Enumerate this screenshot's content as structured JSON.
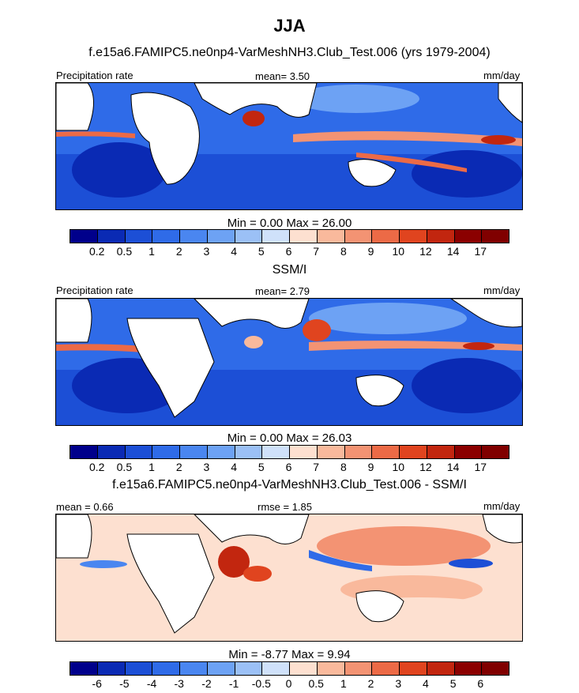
{
  "chart_data": {
    "type": "heatmap",
    "title": "JJA",
    "panels": [
      {
        "heading": "f.e15a6.FAMIPC5.ne0np4-VarMeshNH3.Club_Test.006 (yrs 1979-2004)",
        "left_label": "Precipitation rate",
        "center_label": "mean=   3.50",
        "right_label": "mm/day",
        "minmax": "Min =   0.00 Max =  26.00",
        "levels": [
          "0.2",
          "0.5",
          "1",
          "2",
          "3",
          "4",
          "5",
          "6",
          "7",
          "8",
          "9",
          "10",
          "12",
          "14",
          "17"
        ],
        "colors": [
          "#00008b",
          "#0a2ab4",
          "#1c4fd6",
          "#2f6be8",
          "#4a86f0",
          "#6da2f4",
          "#9bc0f6",
          "#cfe1fa",
          "#fde0d0",
          "#f9b99c",
          "#f39373",
          "#ec6a46",
          "#e0441f",
          "#c2260f",
          "#8b0000",
          "#800000"
        ]
      },
      {
        "heading": "SSM/I",
        "left_label": "Precipitation rate",
        "center_label": "mean=   2.79",
        "right_label": "mm/day",
        "minmax": "Min =   0.00 Max =  26.03",
        "levels": [
          "0.2",
          "0.5",
          "1",
          "2",
          "3",
          "4",
          "5",
          "6",
          "7",
          "8",
          "9",
          "10",
          "12",
          "14",
          "17"
        ],
        "colors": [
          "#00008b",
          "#0a2ab4",
          "#1c4fd6",
          "#2f6be8",
          "#4a86f0",
          "#6da2f4",
          "#9bc0f6",
          "#cfe1fa",
          "#fde0d0",
          "#f9b99c",
          "#f39373",
          "#ec6a46",
          "#e0441f",
          "#c2260f",
          "#8b0000",
          "#800000"
        ]
      },
      {
        "heading": "f.e15a6.FAMIPC5.ne0np4-VarMeshNH3.Club_Test.006 - SSM/I",
        "left_label": "mean =   0.66",
        "center_label": "rmse =   1.85",
        "right_label": "mm/day",
        "minmax": "Min =  -8.77 Max =   9.94",
        "levels": [
          "-6",
          "-5",
          "-4",
          "-3",
          "-2",
          "-1",
          "-0.5",
          "0",
          "0.5",
          "1",
          "2",
          "3",
          "4",
          "5",
          "6"
        ],
        "colors": [
          "#00008b",
          "#0a2ab4",
          "#1c4fd6",
          "#2f6be8",
          "#4a86f0",
          "#6da2f4",
          "#9bc0f6",
          "#cfe1fa",
          "#fde0d0",
          "#f9b99c",
          "#f39373",
          "#ec6a46",
          "#e0441f",
          "#c2260f",
          "#8b0000",
          "#800000"
        ]
      }
    ]
  }
}
